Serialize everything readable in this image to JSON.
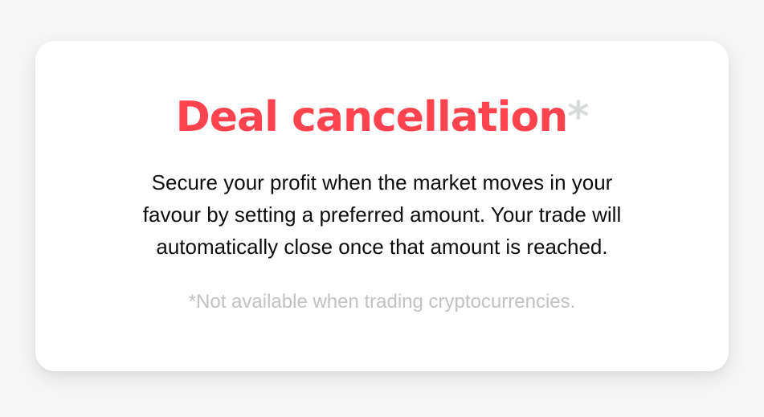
{
  "card": {
    "title": "Deal cancellation",
    "title_asterisk": "*",
    "description_lines": [
      "Secure your profit when the market moves in your",
      "favour by setting a preferred amount. Your trade will",
      "automatically close once that amount is reached."
    ],
    "footnote": "*Not available when trading cryptocurrencies."
  },
  "colors": {
    "background": "#f6f6f6",
    "card": "#ffffff",
    "title": "#ff444f",
    "asterisk": "#d6dadb",
    "body_text": "#0e0e0e",
    "footnote": "#c2c2c2"
  }
}
